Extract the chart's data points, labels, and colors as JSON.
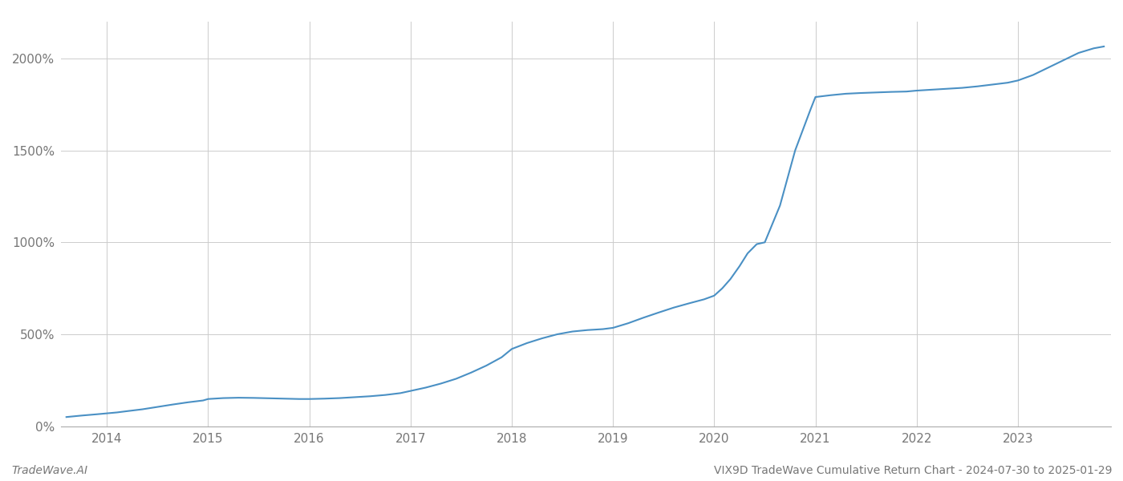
{
  "title": "",
  "footer_left": "TradeWave.AI",
  "footer_right": "VIX9D TradeWave Cumulative Return Chart - 2024-07-30 to 2025-01-29",
  "line_color": "#4a90c4",
  "line_width": 1.5,
  "background_color": "#ffffff",
  "grid_color": "#cccccc",
  "x_years": [
    2014,
    2015,
    2016,
    2017,
    2018,
    2019,
    2020,
    2021,
    2022,
    2023
  ],
  "x_data": [
    2013.6,
    2013.75,
    2013.9,
    2014.0,
    2014.1,
    2014.2,
    2014.35,
    2014.5,
    2014.65,
    2014.8,
    2014.95,
    2015.0,
    2015.15,
    2015.3,
    2015.45,
    2015.6,
    2015.75,
    2015.9,
    2016.0,
    2016.15,
    2016.3,
    2016.45,
    2016.6,
    2016.75,
    2016.9,
    2017.0,
    2017.15,
    2017.3,
    2017.45,
    2017.6,
    2017.75,
    2017.9,
    2018.0,
    2018.15,
    2018.3,
    2018.45,
    2018.6,
    2018.75,
    2018.9,
    2019.0,
    2019.15,
    2019.3,
    2019.45,
    2019.6,
    2019.75,
    2019.9,
    2020.0,
    2020.08,
    2020.16,
    2020.25,
    2020.33,
    2020.42,
    2020.5,
    2020.65,
    2020.8,
    2020.95,
    2021.0,
    2021.15,
    2021.3,
    2021.45,
    2021.6,
    2021.75,
    2021.9,
    2022.0,
    2022.15,
    2022.3,
    2022.45,
    2022.6,
    2022.75,
    2022.9,
    2023.0,
    2023.15,
    2023.3,
    2023.45,
    2023.6,
    2023.75,
    2023.85
  ],
  "y_data": [
    50,
    58,
    65,
    70,
    75,
    82,
    92,
    105,
    118,
    130,
    140,
    148,
    153,
    155,
    154,
    152,
    150,
    148,
    148,
    150,
    153,
    158,
    163,
    170,
    180,
    192,
    210,
    232,
    258,
    292,
    330,
    375,
    420,
    452,
    478,
    500,
    515,
    523,
    528,
    535,
    560,
    590,
    618,
    645,
    668,
    690,
    710,
    750,
    800,
    870,
    940,
    990,
    1000,
    1200,
    1500,
    1720,
    1790,
    1800,
    1808,
    1812,
    1815,
    1818,
    1820,
    1825,
    1830,
    1835,
    1840,
    1848,
    1858,
    1868,
    1880,
    1910,
    1950,
    1990,
    2030,
    2055,
    2065
  ],
  "ylim": [
    0,
    2200
  ],
  "yticks": [
    0,
    500,
    1000,
    1500,
    2000
  ],
  "ytick_labels": [
    "0%",
    "500%",
    "1000%",
    "1500%",
    "2000%"
  ],
  "xlim_min": 2013.55,
  "xlim_max": 2023.92,
  "text_color": "#777777",
  "axis_label_fontsize": 11,
  "footer_fontsize": 10
}
